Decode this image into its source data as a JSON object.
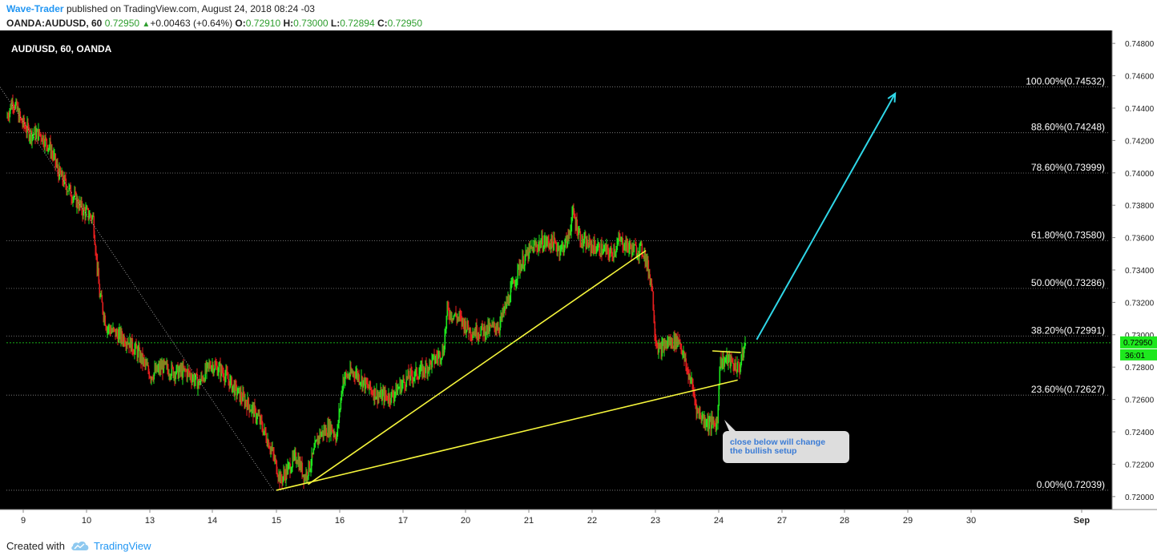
{
  "header": {
    "author": "Wave-Trader",
    "published_text": "published on TradingView.com, August 24, 2018 08:24 -03",
    "symbol": "OANDA:AUDUSD, 60",
    "last": "0.72950",
    "change": "+0.00463 (+0.64%)",
    "o_label": "O:",
    "o_value": "0.72910",
    "h_label": "H:",
    "h_value": "0.73000",
    "l_label": "L:",
    "l_value": "0.72894",
    "c_label": "C:",
    "c_value": "0.72950"
  },
  "footer": {
    "created_with": "Created with",
    "brand": "TradingView"
  },
  "colors": {
    "background": "#000000",
    "up": "#1ee81e",
    "down": "#e81e1e",
    "trendline": "#f5f53b",
    "projection_arrow": "#2fd7e8",
    "fib": "#8c8c8c",
    "last_price": "#1ee81e",
    "axis_text": "#dddddd"
  },
  "chart_data": {
    "type": "candlestick",
    "title": "AUD/USD, 60, OANDA",
    "ylim": [
      0.7192,
      0.7488
    ],
    "y_ticks": [
      "0.72000",
      "0.72200",
      "0.72400",
      "0.72600",
      "0.72800",
      "0.73000",
      "0.73200",
      "0.73400",
      "0.73600",
      "0.73800",
      "0.74000",
      "0.74200",
      "0.74400",
      "0.74600",
      "0.74800"
    ],
    "x_ticks": [
      "9",
      "10",
      "13",
      "14",
      "15",
      "16",
      "17",
      "20",
      "21",
      "22",
      "23",
      "24",
      "27",
      "28",
      "29",
      "30",
      "Sep"
    ],
    "fib_levels": [
      {
        "label": "100.00%(0.74532)",
        "value": 0.74532
      },
      {
        "label": "88.60%(0.74248)",
        "value": 0.74248
      },
      {
        "label": "78.60%(0.73999)",
        "value": 0.73999
      },
      {
        "label": "61.80%(0.73580)",
        "value": 0.7358
      },
      {
        "label": "50.00%(0.73286)",
        "value": 0.73286
      },
      {
        "label": "38.20%(0.72991)",
        "value": 0.72991
      },
      {
        "label": "23.60%(0.72627)",
        "value": 0.72627
      },
      {
        "label": "0.00%(0.72039)",
        "value": 0.72039
      }
    ],
    "price_path": [
      [
        0,
        0.7434
      ],
      [
        8,
        0.7445
      ],
      [
        18,
        0.7432
      ],
      [
        30,
        0.7424
      ],
      [
        42,
        0.7424
      ],
      [
        55,
        0.7415
      ],
      [
        65,
        0.74
      ],
      [
        80,
        0.7388
      ],
      [
        95,
        0.7377
      ],
      [
        108,
        0.7372
      ],
      [
        116,
        0.7325
      ],
      [
        125,
        0.7305
      ],
      [
        138,
        0.73
      ],
      [
        150,
        0.7297
      ],
      [
        165,
        0.7288
      ],
      [
        180,
        0.7275
      ],
      [
        195,
        0.728
      ],
      [
        210,
        0.7277
      ],
      [
        225,
        0.7277
      ],
      [
        240,
        0.727
      ],
      [
        255,
        0.7282
      ],
      [
        270,
        0.7277
      ],
      [
        285,
        0.7266
      ],
      [
        300,
        0.7258
      ],
      [
        315,
        0.7248
      ],
      [
        330,
        0.723
      ],
      [
        342,
        0.721
      ],
      [
        350,
        0.7216
      ],
      [
        362,
        0.7225
      ],
      [
        372,
        0.7212
      ],
      [
        380,
        0.7221
      ],
      [
        390,
        0.7238
      ],
      [
        405,
        0.7243
      ],
      [
        412,
        0.7237
      ],
      [
        420,
        0.7273
      ],
      [
        435,
        0.7277
      ],
      [
        450,
        0.7268
      ],
      [
        465,
        0.7262
      ],
      [
        480,
        0.7262
      ],
      [
        500,
        0.7273
      ],
      [
        520,
        0.7278
      ],
      [
        535,
        0.7285
      ],
      [
        545,
        0.729
      ],
      [
        550,
        0.7315
      ],
      [
        565,
        0.731
      ],
      [
        580,
        0.7302
      ],
      [
        600,
        0.7303
      ],
      [
        615,
        0.7306
      ],
      [
        625,
        0.732
      ],
      [
        640,
        0.7342
      ],
      [
        655,
        0.7353
      ],
      [
        668,
        0.7357
      ],
      [
        680,
        0.7357
      ],
      [
        692,
        0.7353
      ],
      [
        700,
        0.7358
      ],
      [
        707,
        0.7375
      ],
      [
        718,
        0.7357
      ],
      [
        730,
        0.7355
      ],
      [
        745,
        0.7352
      ],
      [
        755,
        0.735
      ],
      [
        765,
        0.7358
      ],
      [
        780,
        0.7353
      ],
      [
        795,
        0.7352
      ],
      [
        805,
        0.7332
      ],
      [
        810,
        0.7298
      ],
      [
        815,
        0.729
      ],
      [
        825,
        0.7295
      ],
      [
        840,
        0.7297
      ],
      [
        848,
        0.728
      ],
      [
        855,
        0.727
      ],
      [
        862,
        0.7253
      ],
      [
        870,
        0.7248
      ],
      [
        878,
        0.7245
      ],
      [
        887,
        0.7245
      ],
      [
        890,
        0.7283
      ],
      [
        900,
        0.7285
      ],
      [
        908,
        0.7281
      ],
      [
        915,
        0.728
      ],
      [
        922,
        0.7295
      ]
    ],
    "trendlines": [
      {
        "from": [
          15.0,
          0.72039
        ],
        "to": [
          24.3,
          0.7272
        ]
      },
      {
        "from": [
          15.5,
          0.72075
        ],
        "to": [
          22.85,
          0.7352
        ]
      },
      {
        "from": [
          23.9,
          0.729
        ],
        "to": [
          24.35,
          0.7289
        ]
      }
    ],
    "diagonal_dotted": {
      "from": [
        8.95,
        0.7453
      ],
      "to": [
        14.95,
        0.7204
      ]
    },
    "projection_arrow": {
      "from": [
        24.6,
        0.7297
      ],
      "to": [
        28.8,
        0.7449
      ]
    },
    "last_price": {
      "value": "0.72950",
      "countdown": "36:01"
    },
    "annotation": "close below will change\nthe bullish setup"
  }
}
